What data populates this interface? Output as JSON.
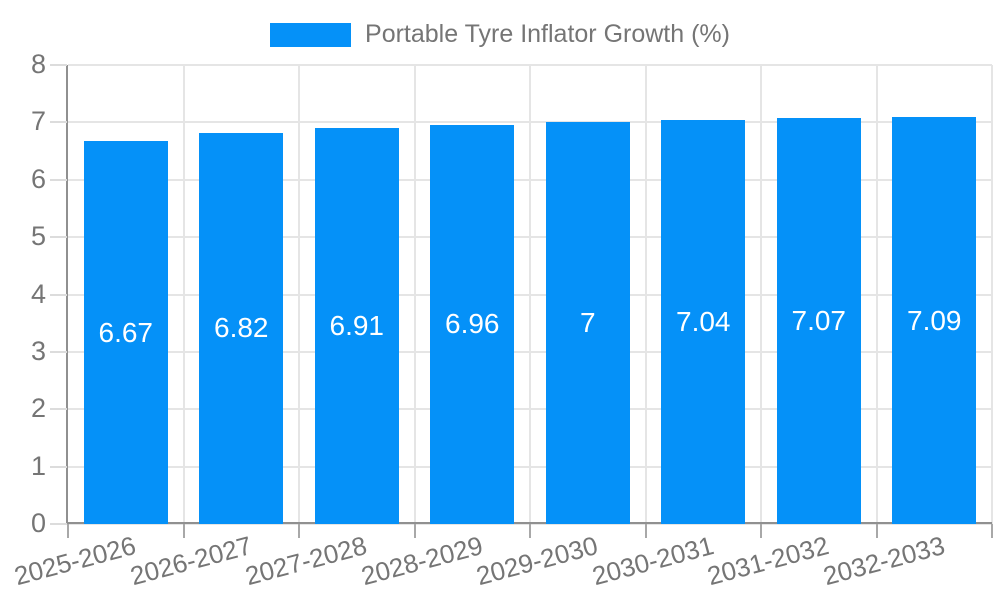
{
  "legend": {
    "label": "Portable Tyre Inflator Growth (%)"
  },
  "chart_data": {
    "type": "bar",
    "title": "Portable Tyre Inflator Growth (%)",
    "categories": [
      "2025-2026",
      "2026-2027",
      "2027-2028",
      "2028-2029",
      "2029-2030",
      "2030-2031",
      "2031-2032",
      "2032-2033"
    ],
    "values": [
      6.67,
      6.82,
      6.91,
      6.96,
      7,
      7.04,
      7.07,
      7.09
    ],
    "value_labels": [
      "6.67",
      "6.82",
      "6.91",
      "6.96",
      "7",
      "7.04",
      "7.07",
      "7.09"
    ],
    "xlabel": "",
    "ylabel": "",
    "ylim": [
      0,
      8
    ],
    "yticks": [
      0,
      1,
      2,
      3,
      4,
      5,
      6,
      7,
      8
    ],
    "grid": true,
    "legend_position": "top-center",
    "x_label_rotation_deg": -15
  },
  "colors": {
    "bar": "#0591f8",
    "grid": "#e5e5e5",
    "axis": "#909090",
    "x_tick": "#a8a8a8",
    "y_tick": "#dcdcdc",
    "text": "#757575",
    "value_text": "#ffffff",
    "background": "#ffffff"
  }
}
